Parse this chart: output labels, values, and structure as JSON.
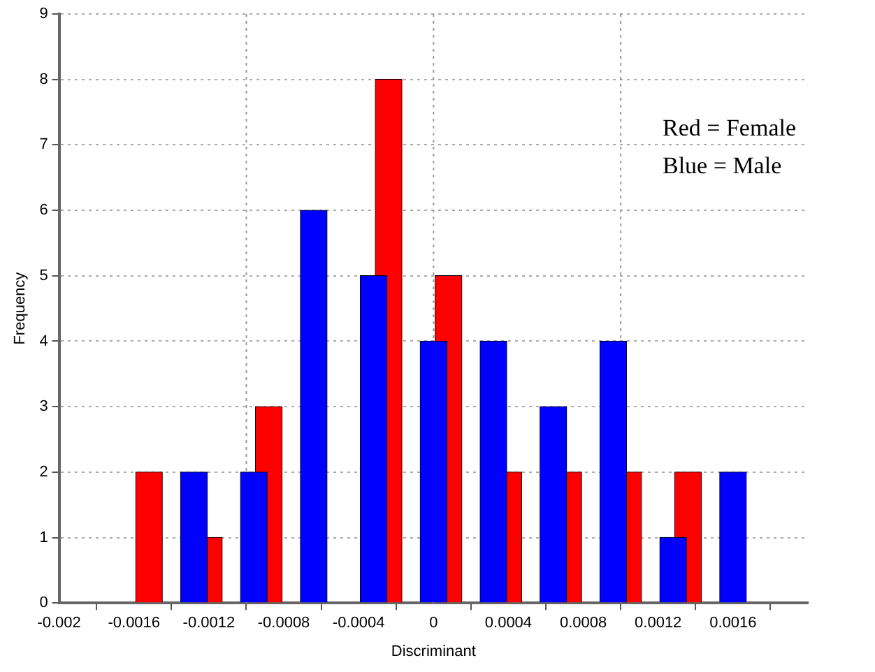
{
  "chart_data": {
    "type": "bar",
    "xlabel": "Discriminant",
    "ylabel": "Frequency",
    "xlim": [
      -0.002,
      0.002
    ],
    "xticks": [
      -0.002,
      -0.0016,
      -0.0012,
      -0.0008,
      -0.0004,
      0,
      0.0004,
      0.0008,
      0.0012,
      0.0016
    ],
    "ylim": [
      0,
      9
    ],
    "yticks": [
      0,
      1,
      2,
      3,
      4,
      5,
      6,
      7,
      8,
      9
    ],
    "grid": "y",
    "legend": false,
    "ref_lines": [
      {
        "axis": "x",
        "value": -0.001,
        "color": "#999999",
        "line_style": "dotted"
      },
      {
        "axis": "x",
        "value": 0,
        "color": "#999999",
        "line_style": "dotted"
      },
      {
        "axis": "x",
        "value": 0.001,
        "color": "#999999",
        "line_style": "dotted"
      }
    ],
    "annotations": [
      "Red = Female",
      "Blue = Male"
    ],
    "series": [
      {
        "color": "#ff0000",
        "x": [
          -0.00152,
          -0.0012,
          -0.00088,
          -0.00024,
          8e-05,
          0.0004,
          0.00072,
          0.00104,
          0.00136
        ],
        "values": [
          2,
          1,
          3,
          8,
          5,
          2,
          2,
          2,
          2
        ]
      },
      {
        "color": "#0000ff",
        "x": [
          -0.00128,
          -0.00096,
          -0.00064,
          -0.00032,
          0,
          0.00032,
          0.00064,
          0.00096,
          0.00128,
          0.0016
        ],
        "values": [
          2,
          2,
          6,
          5,
          4,
          4,
          3,
          4,
          1,
          2
        ]
      }
    ]
  }
}
